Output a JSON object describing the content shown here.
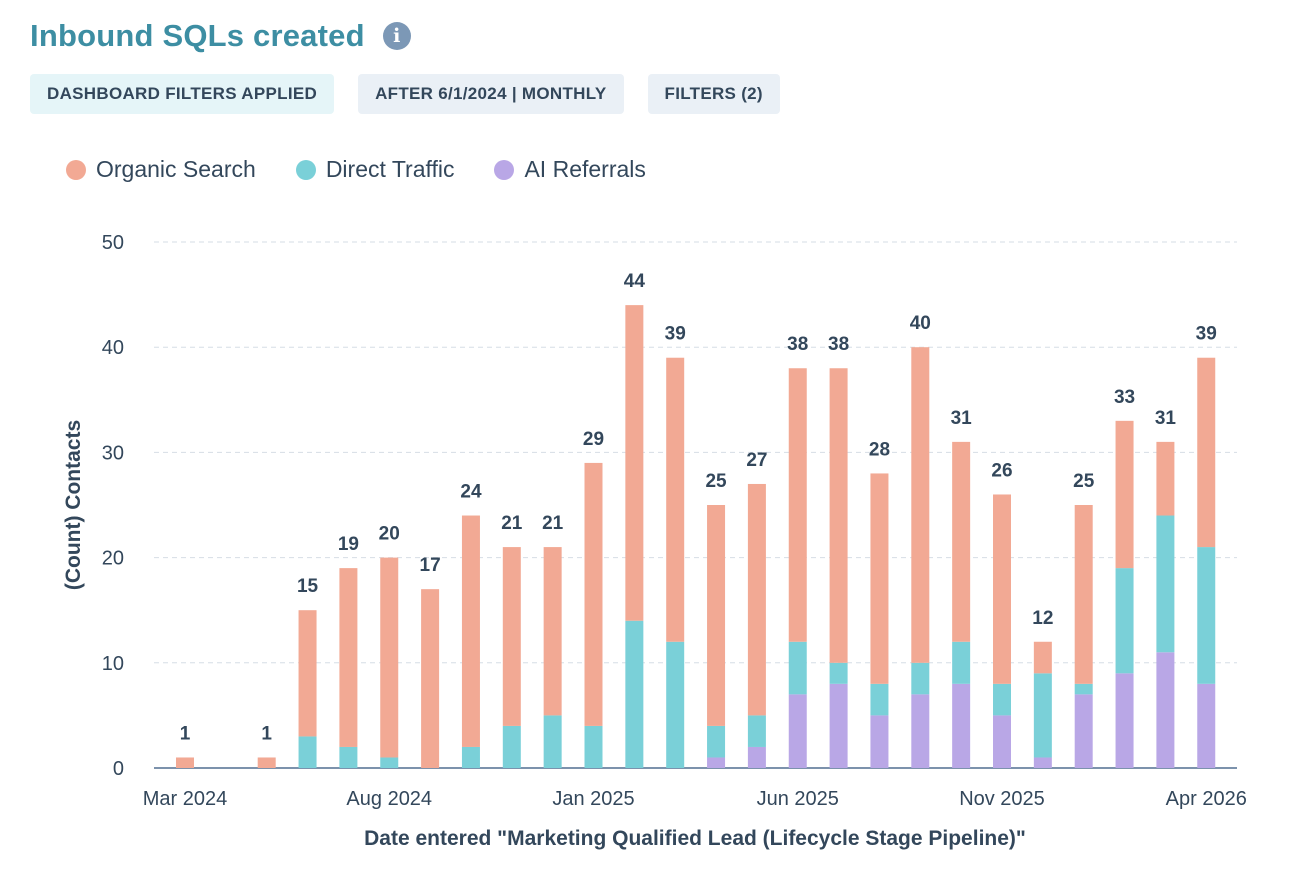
{
  "header": {
    "title": "Inbound SQLs created",
    "info_icon": "info-icon"
  },
  "pills": [
    "DASHBOARD FILTERS APPLIED",
    "AFTER 6/1/2024 | MONTHLY",
    "FILTERS (2)"
  ],
  "colors": {
    "Organic Search": "#f2a994",
    "Direct Traffic": "#7ad0d8",
    "AI Referrals": "#b9a7e6"
  },
  "chart_data": {
    "type": "bar",
    "stacked": true,
    "title": "",
    "xlabel": "Date entered \"Marketing Qualified Lead (Lifecycle Stage Pipeline)\"",
    "ylabel": "(Count) Contacts",
    "ylim": [
      0,
      50
    ],
    "yticks": [
      0,
      10,
      20,
      30,
      40,
      50
    ],
    "grid": true,
    "legend_position": "top-left",
    "categories": [
      "Mar 2024",
      "Apr 2024",
      "May 2024",
      "Jun 2024",
      "Jul 2024",
      "Aug 2024",
      "Sep 2024",
      "Oct 2024",
      "Nov 2024",
      "Dec 2024",
      "Jan 2025",
      "Feb 2025",
      "Mar 2025",
      "Apr 2025",
      "May 2025",
      "Jun 2025",
      "Jul 2025",
      "Aug 2025",
      "Sep 2025",
      "Oct 2025",
      "Nov 2025",
      "Dec 2025",
      "Jan 2026",
      "Feb 2026",
      "Mar 2026",
      "Apr 2026"
    ],
    "x_tick_labels": [
      {
        "index": 0,
        "label": "Mar 2024"
      },
      {
        "index": 5,
        "label": "Aug 2024"
      },
      {
        "index": 10,
        "label": "Jan 2025"
      },
      {
        "index": 15,
        "label": "Jun 2025"
      },
      {
        "index": 20,
        "label": "Nov 2025"
      },
      {
        "index": 25,
        "label": "Apr 2026"
      }
    ],
    "series": [
      {
        "name": "AI Referrals",
        "values": [
          0,
          0,
          0,
          0,
          0,
          0,
          0,
          0,
          0,
          0,
          0,
          0,
          0,
          1,
          2,
          7,
          8,
          5,
          7,
          8,
          5,
          1,
          7,
          9,
          11,
          8
        ]
      },
      {
        "name": "Direct Traffic",
        "values": [
          0,
          0,
          0,
          3,
          2,
          1,
          0,
          2,
          4,
          5,
          4,
          14,
          12,
          3,
          3,
          5,
          2,
          3,
          3,
          4,
          3,
          8,
          1,
          10,
          13,
          13
        ]
      },
      {
        "name": "Organic Search",
        "values": [
          1,
          null,
          1,
          12,
          17,
          19,
          17,
          22,
          17,
          16,
          25,
          30,
          27,
          21,
          22,
          26,
          28,
          20,
          30,
          19,
          18,
          3,
          17,
          14,
          7,
          18
        ]
      }
    ],
    "totals": [
      1,
      null,
      1,
      15,
      19,
      20,
      17,
      24,
      21,
      21,
      29,
      44,
      39,
      25,
      27,
      38,
      38,
      28,
      40,
      31,
      26,
      12,
      25,
      33,
      31,
      39
    ]
  }
}
